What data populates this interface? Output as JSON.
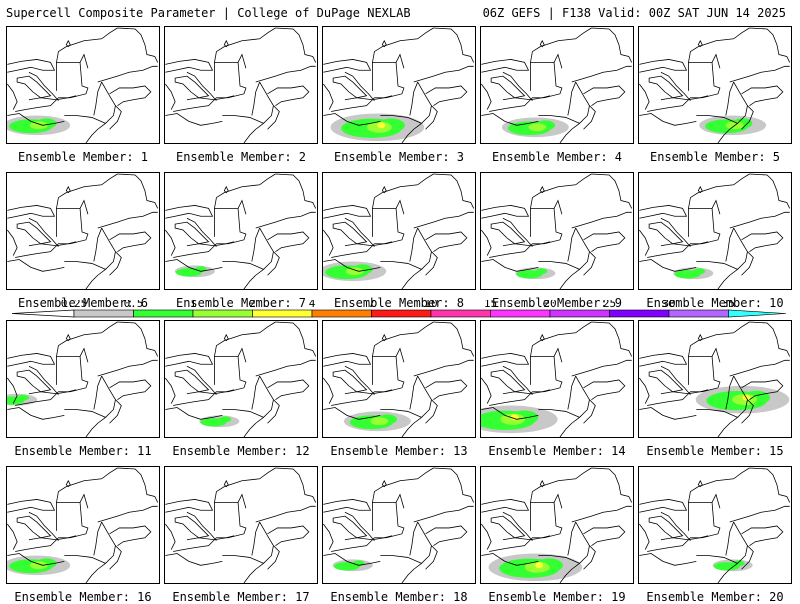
{
  "header": {
    "title_left": "Supercell Composite Parameter | College of DuPage NEXLAB",
    "title_right": "06Z GEFS | F138 Valid: 00Z SAT JUN 14 2025"
  },
  "member_label_prefix": "Ensemble Member: ",
  "members": [
    {
      "id": "1",
      "label": "Ensemble Member: 1",
      "coverage": "moderate",
      "region": "south-west"
    },
    {
      "id": "2",
      "label": "Ensemble Member: 2",
      "coverage": "none",
      "region": ""
    },
    {
      "id": "3",
      "label": "Ensemble Member: 3",
      "coverage": "high",
      "region": "south"
    },
    {
      "id": "4",
      "label": "Ensemble Member: 4",
      "coverage": "moderate",
      "region": "south"
    },
    {
      "id": "5",
      "label": "Ensemble Member: 5",
      "coverage": "moderate",
      "region": "south-east"
    },
    {
      "id": "6",
      "label": "Ensemble Member: 6",
      "coverage": "none",
      "region": ""
    },
    {
      "id": "7",
      "label": "Ensemble Member: 7",
      "coverage": "low",
      "region": "south-west"
    },
    {
      "id": "8",
      "label": "Ensemble Member: 8",
      "coverage": "moderate",
      "region": "south-west"
    },
    {
      "id": "9",
      "label": "Ensemble Member: 9",
      "coverage": "low",
      "region": "south"
    },
    {
      "id": "10",
      "label": "Ensemble Member: 10",
      "coverage": "low",
      "region": "south"
    },
    {
      "id": "11",
      "label": "Ensemble Member: 11",
      "coverage": "low",
      "region": "west"
    },
    {
      "id": "12",
      "label": "Ensemble Member: 12",
      "coverage": "low",
      "region": "south"
    },
    {
      "id": "13",
      "label": "Ensemble Member: 13",
      "coverage": "moderate",
      "region": "south"
    },
    {
      "id": "14",
      "label": "Ensemble Member: 14",
      "coverage": "high",
      "region": "south-west"
    },
    {
      "id": "15",
      "label": "Ensemble Member: 15",
      "coverage": "high",
      "region": "east"
    },
    {
      "id": "16",
      "label": "Ensemble Member: 16",
      "coverage": "moderate",
      "region": "south-west"
    },
    {
      "id": "17",
      "label": "Ensemble Member: 17",
      "coverage": "none",
      "region": ""
    },
    {
      "id": "18",
      "label": "Ensemble Member: 18",
      "coverage": "low",
      "region": "south-west"
    },
    {
      "id": "19",
      "label": "Ensemble Member: 19",
      "coverage": "high",
      "region": "south"
    },
    {
      "id": "20",
      "label": "Ensemble Member: 20",
      "coverage": "low",
      "region": "south-east"
    }
  ],
  "legend": {
    "ticks": [
      "0.25",
      "0.5",
      "1",
      "2",
      "4",
      "7",
      "10",
      "15",
      "20",
      "25",
      "30",
      "35"
    ],
    "colors": [
      "#c8c8c8",
      "#33ff33",
      "#99ff33",
      "#ffff33",
      "#ff8000",
      "#ff1a1a",
      "#ff33aa",
      "#ff33ff",
      "#cc33ff",
      "#8000ff",
      "#b266ff",
      "#33ffff"
    ]
  },
  "fill_colors": {
    "light": "#c8c8c8",
    "green": "#33ff33",
    "yellowgreen": "#99ff33",
    "yellow": "#ffff33"
  }
}
